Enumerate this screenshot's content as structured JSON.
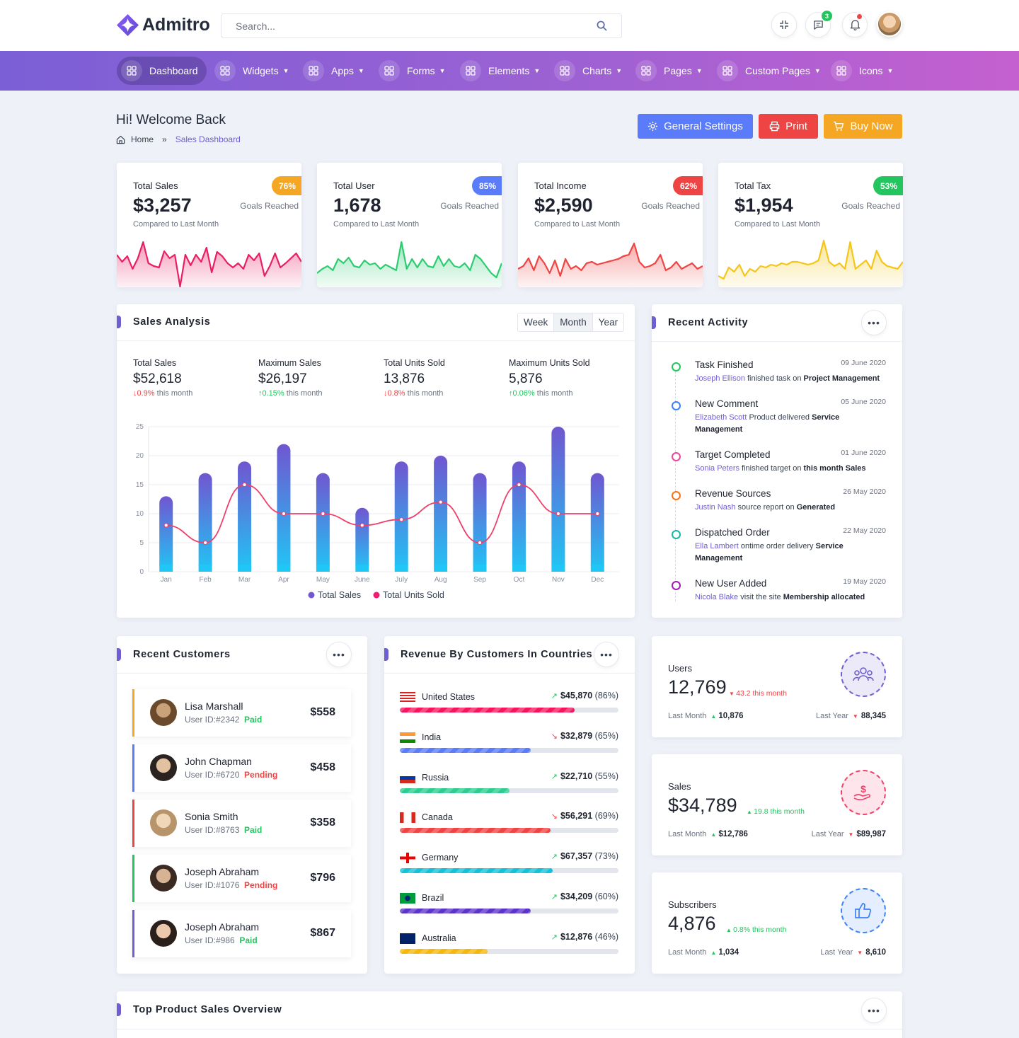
{
  "app": {
    "name": "Admitro",
    "search_placeholder": "Search...",
    "messages_count": "3"
  },
  "nav": [
    {
      "label": "Dashboard"
    },
    {
      "label": "Widgets"
    },
    {
      "label": "Apps"
    },
    {
      "label": "Forms"
    },
    {
      "label": "Elements"
    },
    {
      "label": "Charts"
    },
    {
      "label": "Pages"
    },
    {
      "label": "Custom Pages"
    },
    {
      "label": "Icons"
    }
  ],
  "header": {
    "title": "Hi! Welcome Back",
    "breadcrumb_home": "Home",
    "breadcrumb_sep": "»",
    "breadcrumb_current": "Sales Dashboard",
    "btn_settings": "General Settings",
    "btn_print": "Print",
    "btn_buy": "Buy Now"
  },
  "stats": [
    {
      "label": "Total Sales",
      "value": "$3,257",
      "percent": "76%",
      "goal": "Goals Reached",
      "compare": "Compared to Last Month",
      "color": "#e91e63",
      "badge": "#f5a623"
    },
    {
      "label": "Total User",
      "value": "1,678",
      "percent": "85%",
      "goal": "Goals Reached",
      "compare": "Compared to Last Month",
      "color": "#2ecc71",
      "badge": "#5b7cfa"
    },
    {
      "label": "Total Income",
      "value": "$2,590",
      "percent": "62%",
      "goal": "Goals Reached",
      "compare": "Compared to Last Month",
      "color": "#ef4444",
      "badge": "#ef4444"
    },
    {
      "label": "Total Tax",
      "value": "$1,954",
      "percent": "53%",
      "goal": "Goals Reached",
      "compare": "Compared to Last Month",
      "color": "#f5c518",
      "badge": "#22c55e"
    }
  ],
  "sales_analysis": {
    "title": "Sales Analysis",
    "tabs": [
      "Week",
      "Month",
      "Year"
    ],
    "metrics": [
      {
        "label": "Total Sales",
        "value": "$52,618",
        "change": "0.9%",
        "dir": "down",
        "suffix": "this month"
      },
      {
        "label": "Maximum Sales",
        "value": "$26,197",
        "change": "0.15%",
        "dir": "up",
        "suffix": "this month"
      },
      {
        "label": "Total Units Sold",
        "value": "13,876",
        "change": "0.8%",
        "dir": "down",
        "suffix": "this month"
      },
      {
        "label": "Maximum Units Sold",
        "value": "5,876",
        "change": "0.06%",
        "dir": "up",
        "suffix": "this month"
      }
    ]
  },
  "chart_data": {
    "type": "bar",
    "categories": [
      "Jan",
      "Feb",
      "Mar",
      "Apr",
      "May",
      "June",
      "July",
      "Aug",
      "Sep",
      "Oct",
      "Nov",
      "Dec"
    ],
    "series": [
      {
        "name": "Total Sales",
        "type": "bar",
        "values": [
          13,
          17,
          19,
          22,
          17,
          11,
          19,
          20,
          17,
          19,
          25,
          17
        ]
      },
      {
        "name": "Total Units Sold",
        "type": "line",
        "values": [
          8,
          5,
          15,
          10,
          10,
          8,
          9,
          12,
          5,
          15,
          10,
          10
        ]
      }
    ],
    "yticks": [
      0,
      5,
      10,
      15,
      20,
      25
    ],
    "ylim": [
      0,
      25
    ],
    "grid": true,
    "legend": "bottom",
    "colors": {
      "bar_top": "#7056d0",
      "bar_bottom": "#20c6f5",
      "line": "#ef3f6b"
    }
  },
  "activity": {
    "title": "Recent Activity",
    "items": [
      {
        "title": "Task Finished",
        "date": "09 June 2020",
        "name": "Joseph Ellison",
        "text": "finished task on",
        "bold": "Project Management",
        "color": "#22c55e"
      },
      {
        "title": "New Comment",
        "date": "05 June 2020",
        "name": "Elizabeth Scott",
        "text": "Product delivered",
        "bold": "Service Management",
        "color": "#3b82f6"
      },
      {
        "title": "Target Completed",
        "date": "01 June 2020",
        "name": "Sonia Peters",
        "text": "finished target on",
        "bold": "this month Sales",
        "color": "#ec4899"
      },
      {
        "title": "Revenue Sources",
        "date": "26 May 2020",
        "name": "Justin Nash",
        "text": "source report on",
        "bold": "Generated",
        "color": "#f97316"
      },
      {
        "title": "Dispatched Order",
        "date": "22 May 2020",
        "name": "Ella Lambert",
        "text": "ontime order delivery",
        "bold": "Service Management",
        "color": "#14b8a6"
      },
      {
        "title": "New User Added",
        "date": "19 May 2020",
        "name": "Nicola Blake",
        "text": "visit the site",
        "bold": "Membership allocated",
        "color": "#a21caf"
      }
    ]
  },
  "customers": {
    "title": "Recent Customers",
    "items": [
      {
        "name": "Lisa Marshall",
        "id": "User ID:#2342",
        "status": "Paid",
        "amount": "$558",
        "color": "#f5a623"
      },
      {
        "name": "John Chapman",
        "id": "User ID:#6720",
        "status": "Pending",
        "amount": "$458",
        "color": "#5b7cfa"
      },
      {
        "name": "Sonia Smith",
        "id": "User ID:#8763",
        "status": "Paid",
        "amount": "$358",
        "color": "#ef4444"
      },
      {
        "name": "Joseph Abraham",
        "id": "User ID:#1076",
        "status": "Pending",
        "amount": "$796",
        "color": "#22c55e"
      },
      {
        "name": "Joseph Abraham",
        "id": "User ID:#986",
        "status": "Paid",
        "amount": "$867",
        "color": "#6d5ed1"
      }
    ]
  },
  "revenue": {
    "title": "Revenue By Customers In Countries",
    "items": [
      {
        "country": "United States",
        "value": "$45,870",
        "pct": "(86%)",
        "fill": 0.8,
        "trend": "up",
        "color": "#f5165f"
      },
      {
        "country": "India",
        "value": "$32,879",
        "pct": "(65%)",
        "fill": 0.6,
        "trend": "down",
        "color": "#5b7cfa"
      },
      {
        "country": "Russia",
        "value": "$22,710",
        "pct": "(55%)",
        "fill": 0.5,
        "trend": "up",
        "color": "#2ecc8f"
      },
      {
        "country": "Canada",
        "value": "$56,291",
        "pct": "(69%)",
        "fill": 0.69,
        "trend": "down",
        "color": "#ef4444"
      },
      {
        "country": "Germany",
        "value": "$67,357",
        "pct": "(73%)",
        "fill": 0.7,
        "trend": "up",
        "color": "#14c2d8"
      },
      {
        "country": "Brazil",
        "value": "$34,209",
        "pct": "(60%)",
        "fill": 0.6,
        "trend": "up",
        "color": "#5b34c9"
      },
      {
        "country": "Australia",
        "value": "$12,876",
        "pct": "(46%)",
        "fill": 0.4,
        "trend": "up",
        "color": "#f5b70a"
      }
    ]
  },
  "mini_stats": [
    {
      "label": "Users",
      "value": "12,769",
      "change": "43.2",
      "dir": "down",
      "suffix": "this month",
      "last_month_label": "Last Month",
      "last_month": "10,876",
      "last_year_label": "Last Year",
      "last_year": "88,345",
      "color": "#6d5ed1",
      "icon": "users-icon"
    },
    {
      "label": "Sales",
      "value": "$34,789",
      "change": "19.8",
      "dir": "up",
      "suffix": "this month",
      "last_month_label": "Last Month",
      "last_month": "$12,786",
      "last_year_label": "Last Year",
      "last_year": "$89,987",
      "color": "#ef3f6b",
      "icon": "dollar-hand-icon"
    },
    {
      "label": "Subscribers",
      "value": "4,876",
      "change": "0.8%",
      "dir": "up",
      "suffix": "this month",
      "last_month_label": "Last Month",
      "last_month": "1,034",
      "last_year_label": "Last Year",
      "last_year": "8,610",
      "color": "#3b82f6",
      "icon": "thumbs-up-icon"
    }
  ],
  "top_products": {
    "title": "Top Product Sales Overview"
  }
}
